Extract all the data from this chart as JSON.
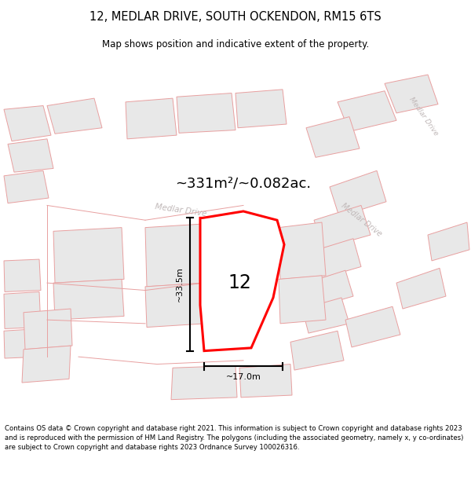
{
  "title": "12, MEDLAR DRIVE, SOUTH OCKENDON, RM15 6TS",
  "subtitle": "Map shows position and indicative extent of the property.",
  "area_text": "~331m²/~0.082ac.",
  "label_number": "12",
  "dim_width": "~17.0m",
  "dim_height": "~33.5m",
  "bg_color": "#ffffff",
  "road_label_color": "#c0b8b8",
  "footer_text": "Contains OS data © Crown copyright and database right 2021. This information is subject to Crown copyright and database rights 2023 and is reproduced with the permission of HM Land Registry. The polygons (including the associated geometry, namely x, y co-ordinates) are subject to Crown copyright and database rights 2023 Ordnance Survey 100026316.",
  "nearby_fc": "#e8e8e8",
  "nearby_ec": "#e8a0a0",
  "road_color": "#ffffff",
  "plot_outline": "#ff0000",
  "plot_fill": "#ffffff",
  "map_bg": "#f0eded"
}
